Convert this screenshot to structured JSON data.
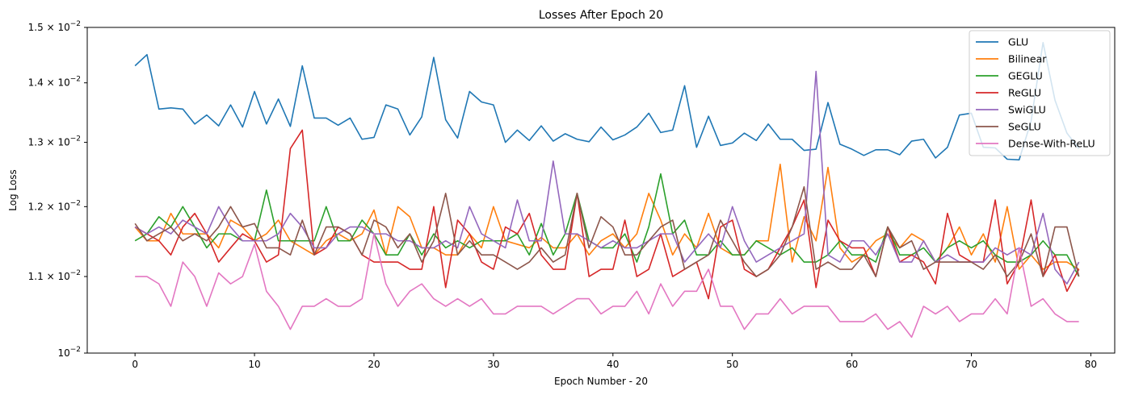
{
  "chart_data": {
    "type": "line",
    "title": "Losses After Epoch 20",
    "xlabel": "Epoch Number - 20",
    "ylabel": "Log Loss",
    "yscale": "log",
    "xlim": [
      -4,
      82
    ],
    "ylim": [
      0.01,
      0.015
    ],
    "grid": false,
    "legend_position": "top-right",
    "x_ticks": [
      0,
      10,
      20,
      30,
      40,
      50,
      60,
      70,
      80
    ],
    "x_tick_labels": [
      "0",
      "10",
      "20",
      "30",
      "40",
      "50",
      "60",
      "70",
      "80"
    ],
    "y_ticks": [
      0.01,
      0.011,
      0.012,
      0.013,
      0.014,
      0.015
    ],
    "y_tick_mantissa": [
      "10",
      "1.1 × 10",
      "1.2 × 10",
      "1.3 × 10",
      "1.4 × 10",
      "1.5 × 10"
    ],
    "y_tick_exponent": "−2",
    "series": [
      {
        "name": "GLU",
        "color": "#1f77b4",
        "values": [
          0.0143,
          0.0145,
          0.01355,
          0.01357,
          0.01355,
          0.0133,
          0.01345,
          0.01327,
          0.01362,
          0.01325,
          0.01385,
          0.0133,
          0.01372,
          0.01326,
          0.0143,
          0.0134,
          0.0134,
          0.01328,
          0.0134,
          0.01305,
          0.01308,
          0.01362,
          0.01355,
          0.01312,
          0.01342,
          0.01445,
          0.01337,
          0.01307,
          0.01385,
          0.01367,
          0.01362,
          0.013,
          0.0132,
          0.01303,
          0.01327,
          0.01302,
          0.01314,
          0.01305,
          0.01301,
          0.01325,
          0.01304,
          0.01312,
          0.01325,
          0.01348,
          0.01316,
          0.0132,
          0.01395,
          0.01292,
          0.01343,
          0.01295,
          0.01299,
          0.01315,
          0.01303,
          0.0133,
          0.01305,
          0.01305,
          0.01287,
          0.01289,
          0.01366,
          0.01297,
          0.01289,
          0.01279,
          0.01288,
          0.01288,
          0.0128,
          0.01302,
          0.01305,
          0.01275,
          0.01292,
          0.01345,
          0.01348,
          0.01292,
          0.01291,
          0.01273,
          0.01272,
          0.01335,
          0.01472,
          0.0137,
          0.01315,
          0.0129
        ]
      },
      {
        "name": "Bilinear",
        "color": "#ff7f0e",
        "values": [
          0.0117,
          0.0115,
          0.0115,
          0.0119,
          0.0116,
          0.0116,
          0.0116,
          0.0114,
          0.0118,
          0.0117,
          0.0115,
          0.0116,
          0.0118,
          0.0115,
          0.0114,
          0.0113,
          0.0115,
          0.0116,
          0.0115,
          0.0116,
          0.01195,
          0.0113,
          0.012,
          0.01185,
          0.0114,
          0.0114,
          0.0113,
          0.0113,
          0.0116,
          0.0114,
          0.012,
          0.0115,
          0.01145,
          0.0114,
          0.01155,
          0.0114,
          0.0114,
          0.0116,
          0.0113,
          0.0115,
          0.0116,
          0.0114,
          0.0116,
          0.0122,
          0.0118,
          0.0113,
          0.0116,
          0.0114,
          0.0119,
          0.0114,
          0.0113,
          0.0113,
          0.0115,
          0.0115,
          0.01265,
          0.0112,
          0.01185,
          0.0115,
          0.0126,
          0.0114,
          0.0112,
          0.0113,
          0.0115,
          0.0116,
          0.0114,
          0.0116,
          0.0115,
          0.0112,
          0.0114,
          0.0117,
          0.0113,
          0.0116,
          0.0112,
          0.012,
          0.0111,
          0.0113,
          0.0111,
          0.0112,
          0.0112,
          0.0111
        ]
      },
      {
        "name": "GEGLU",
        "color": "#2ca02c",
        "values": [
          0.0115,
          0.0116,
          0.01185,
          0.0117,
          0.012,
          0.0117,
          0.0114,
          0.0116,
          0.0116,
          0.0115,
          0.0115,
          0.01225,
          0.0115,
          0.0115,
          0.0115,
          0.0115,
          0.012,
          0.0115,
          0.0115,
          0.0118,
          0.0116,
          0.0113,
          0.0113,
          0.0116,
          0.0113,
          0.0116,
          0.0114,
          0.0115,
          0.0114,
          0.0115,
          0.0115,
          0.0115,
          0.0116,
          0.0113,
          0.01175,
          0.0113,
          0.0116,
          0.0122,
          0.0115,
          0.0114,
          0.0114,
          0.0116,
          0.0112,
          0.0117,
          0.0125,
          0.0116,
          0.0118,
          0.0113,
          0.0113,
          0.0115,
          0.0113,
          0.0113,
          0.0115,
          0.0114,
          0.0113,
          0.0114,
          0.0112,
          0.0112,
          0.0113,
          0.0115,
          0.0113,
          0.0113,
          0.0112,
          0.0117,
          0.0113,
          0.0113,
          0.0114,
          0.0112,
          0.0114,
          0.0115,
          0.0114,
          0.0115,
          0.0113,
          0.0112,
          0.0112,
          0.0113,
          0.0115,
          0.0113,
          0.0113,
          0.011
        ]
      },
      {
        "name": "ReGLU",
        "color": "#d62728",
        "values": [
          0.0117,
          0.0116,
          0.0115,
          0.0113,
          0.0117,
          0.0119,
          0.0116,
          0.0112,
          0.0114,
          0.0116,
          0.0115,
          0.0112,
          0.0113,
          0.0129,
          0.0132,
          0.0113,
          0.0114,
          0.0117,
          0.0116,
          0.0113,
          0.0112,
          0.0112,
          0.0112,
          0.0111,
          0.0111,
          0.012,
          0.01085,
          0.0118,
          0.0116,
          0.0112,
          0.0111,
          0.0117,
          0.0116,
          0.0119,
          0.0113,
          0.0111,
          0.0111,
          0.0122,
          0.011,
          0.0111,
          0.0111,
          0.0118,
          0.011,
          0.0111,
          0.0116,
          0.011,
          0.0111,
          0.0112,
          0.0107,
          0.0117,
          0.0118,
          0.0111,
          0.011,
          0.0111,
          0.0114,
          0.0117,
          0.0121,
          0.01085,
          0.0118,
          0.0115,
          0.0114,
          0.0114,
          0.011,
          0.0117,
          0.0112,
          0.0113,
          0.0112,
          0.0109,
          0.0119,
          0.0113,
          0.0112,
          0.0112,
          0.0121,
          0.0109,
          0.0112,
          0.0121,
          0.011,
          0.0113,
          0.0108,
          0.0111
        ]
      },
      {
        "name": "SwiGLU",
        "color": "#9467bd",
        "values": [
          0.0117,
          0.0116,
          0.0117,
          0.0116,
          0.0118,
          0.0117,
          0.0116,
          0.012,
          0.0117,
          0.0115,
          0.0115,
          0.0115,
          0.0116,
          0.0119,
          0.0117,
          0.0114,
          0.0114,
          0.0116,
          0.0117,
          0.0117,
          0.0116,
          0.0116,
          0.0115,
          0.0115,
          0.0114,
          0.0114,
          0.0115,
          0.0114,
          0.012,
          0.0116,
          0.0115,
          0.0114,
          0.0121,
          0.0115,
          0.0115,
          0.0127,
          0.0116,
          0.0116,
          0.0115,
          0.0114,
          0.0115,
          0.0114,
          0.0114,
          0.0115,
          0.0116,
          0.0116,
          0.0112,
          0.0114,
          0.0116,
          0.0114,
          0.012,
          0.0115,
          0.0112,
          0.0113,
          0.0114,
          0.0115,
          0.0116,
          0.0142,
          0.0113,
          0.0112,
          0.0115,
          0.0115,
          0.0113,
          0.0116,
          0.0112,
          0.0112,
          0.0115,
          0.0112,
          0.0113,
          0.0112,
          0.0112,
          0.0112,
          0.0114,
          0.0113,
          0.0114,
          0.0113,
          0.0119,
          0.0111,
          0.0109,
          0.0112
        ]
      },
      {
        "name": "SeGLU",
        "color": "#8c564b",
        "values": [
          0.01175,
          0.0115,
          0.0116,
          0.0117,
          0.0115,
          0.0116,
          0.0115,
          0.0117,
          0.012,
          0.0117,
          0.01175,
          0.0114,
          0.0114,
          0.0113,
          0.0118,
          0.0113,
          0.0117,
          0.0117,
          0.0116,
          0.0113,
          0.0118,
          0.0117,
          0.0114,
          0.0116,
          0.0112,
          0.0115,
          0.0122,
          0.0113,
          0.0115,
          0.0113,
          0.0113,
          0.0112,
          0.0111,
          0.0112,
          0.0114,
          0.0112,
          0.0113,
          0.0122,
          0.0114,
          0.01185,
          0.0117,
          0.0113,
          0.0113,
          0.0115,
          0.0117,
          0.0118,
          0.0111,
          0.0112,
          0.0113,
          0.0118,
          0.0115,
          0.0112,
          0.011,
          0.0111,
          0.0113,
          0.0117,
          0.0123,
          0.0111,
          0.0112,
          0.0111,
          0.0111,
          0.0113,
          0.011,
          0.0117,
          0.0114,
          0.0115,
          0.0111,
          0.0112,
          0.0112,
          0.0112,
          0.0112,
          0.0111,
          0.0113,
          0.011,
          0.0112,
          0.0116,
          0.011,
          0.0117,
          0.0117,
          0.011
        ]
      },
      {
        "name": "Dense-With-ReLU",
        "color": "#e377c2",
        "values": [
          0.011,
          0.011,
          0.0109,
          0.0106,
          0.0112,
          0.011,
          0.0106,
          0.01105,
          0.0109,
          0.011,
          0.01145,
          0.0108,
          0.0106,
          0.0103,
          0.0106,
          0.0106,
          0.0107,
          0.0106,
          0.0106,
          0.0107,
          0.0116,
          0.0109,
          0.0106,
          0.0108,
          0.0109,
          0.0107,
          0.0106,
          0.0107,
          0.0106,
          0.0107,
          0.0105,
          0.0105,
          0.0106,
          0.0106,
          0.0106,
          0.0105,
          0.0106,
          0.0107,
          0.0107,
          0.0105,
          0.0106,
          0.0106,
          0.0108,
          0.0105,
          0.0109,
          0.0106,
          0.0108,
          0.0108,
          0.0111,
          0.0106,
          0.0106,
          0.0103,
          0.0105,
          0.0105,
          0.0107,
          0.0105,
          0.0106,
          0.0106,
          0.0106,
          0.0104,
          0.0104,
          0.0104,
          0.0105,
          0.0103,
          0.0104,
          0.0102,
          0.0106,
          0.0105,
          0.0106,
          0.0104,
          0.0105,
          0.0105,
          0.0107,
          0.0105,
          0.0114,
          0.0106,
          0.0107,
          0.0105,
          0.0104,
          0.0104
        ]
      }
    ]
  }
}
